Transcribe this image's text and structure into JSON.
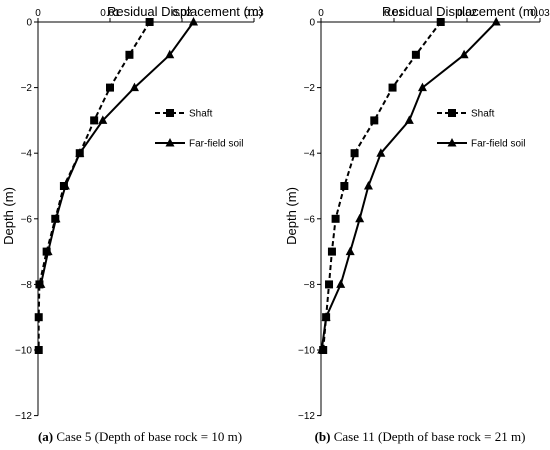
{
  "chart_data": [
    {
      "type": "line",
      "x_axis_title": "Residual Displacement (m)",
      "y_axis_title": "Depth (m)",
      "xlim": [
        0,
        0.03
      ],
      "ylim": [
        -12,
        0
      ],
      "x_ticks": [
        0,
        0.01,
        0.02,
        0.03
      ],
      "x_tick_labels": [
        "0",
        "0.01",
        "0.02",
        "0.03"
      ],
      "y_ticks": [
        0,
        -2,
        -4,
        -6,
        -8,
        -10,
        -12
      ],
      "y_tick_labels": [
        "0",
        "−2",
        "−4",
        "−6",
        "−8",
        "−10",
        "−12"
      ],
      "grid": false,
      "legend_position": "right",
      "caption_prefix": "(a)",
      "caption_text": " Case 5 (Depth of base rock = 10 m)",
      "series": [
        {
          "name": "Shaft",
          "line_style": "dashed",
          "marker": "square",
          "points": [
            [
              0.0155,
              0
            ],
            [
              0.0127,
              -1
            ],
            [
              0.01,
              -2
            ],
            [
              0.0078,
              -3
            ],
            [
              0.0058,
              -4
            ],
            [
              0.0036,
              -5
            ],
            [
              0.0024,
              -6
            ],
            [
              0.0012,
              -7
            ],
            [
              0.0002,
              -8
            ],
            [
              0.0001,
              -9
            ],
            [
              0.0001,
              -10
            ]
          ]
        },
        {
          "name": "Far-field soil",
          "line_style": "solid",
          "marker": "triangle",
          "points": [
            [
              0.0216,
              0
            ],
            [
              0.0183,
              -1
            ],
            [
              0.0134,
              -2
            ],
            [
              0.009,
              -3
            ],
            [
              0.0058,
              -4
            ],
            [
              0.0038,
              -5
            ],
            [
              0.0025,
              -6
            ],
            [
              0.0014,
              -7
            ],
            [
              0.0004,
              -8
            ]
          ]
        }
      ]
    },
    {
      "type": "line",
      "x_axis_title": "Residual Displacement (m)",
      "y_axis_title": "Depth (m)",
      "xlim": [
        0,
        0.03
      ],
      "ylim": [
        -12,
        0
      ],
      "x_ticks": [
        0,
        0.01,
        0.02,
        0.03
      ],
      "x_tick_labels": [
        "0",
        "0.01",
        "0.02",
        "0.03"
      ],
      "y_ticks": [
        0,
        -2,
        -4,
        -6,
        -8,
        -10,
        -12
      ],
      "y_tick_labels": [
        "0",
        "−2",
        "−4",
        "−6",
        "−8",
        "−10",
        "−12"
      ],
      "grid": false,
      "legend_position": "right",
      "caption_prefix": "(b)",
      "caption_text": " Case 11 (Depth of base rock = 21 m)",
      "series": [
        {
          "name": "Shaft",
          "line_style": "dashed",
          "marker": "square",
          "points": [
            [
              0.0164,
              0
            ],
            [
              0.013,
              -1
            ],
            [
              0.0098,
              -2
            ],
            [
              0.0073,
              -3
            ],
            [
              0.0046,
              -4
            ],
            [
              0.0032,
              -5
            ],
            [
              0.002,
              -6
            ],
            [
              0.0015,
              -7
            ],
            [
              0.0011,
              -8
            ],
            [
              0.0007,
              -9
            ],
            [
              0.0003,
              -10
            ]
          ]
        },
        {
          "name": "Far-field soil",
          "line_style": "solid",
          "marker": "triangle",
          "points": [
            [
              0.024,
              0
            ],
            [
              0.0196,
              -1
            ],
            [
              0.0139,
              -2
            ],
            [
              0.0121,
              -3
            ],
            [
              0.0082,
              -4
            ],
            [
              0.0065,
              -5
            ],
            [
              0.0053,
              -6
            ],
            [
              0.004,
              -7
            ],
            [
              0.0027,
              -8
            ],
            [
              0.0007,
              -9
            ],
            [
              0.0001,
              -10
            ]
          ]
        }
      ]
    }
  ]
}
